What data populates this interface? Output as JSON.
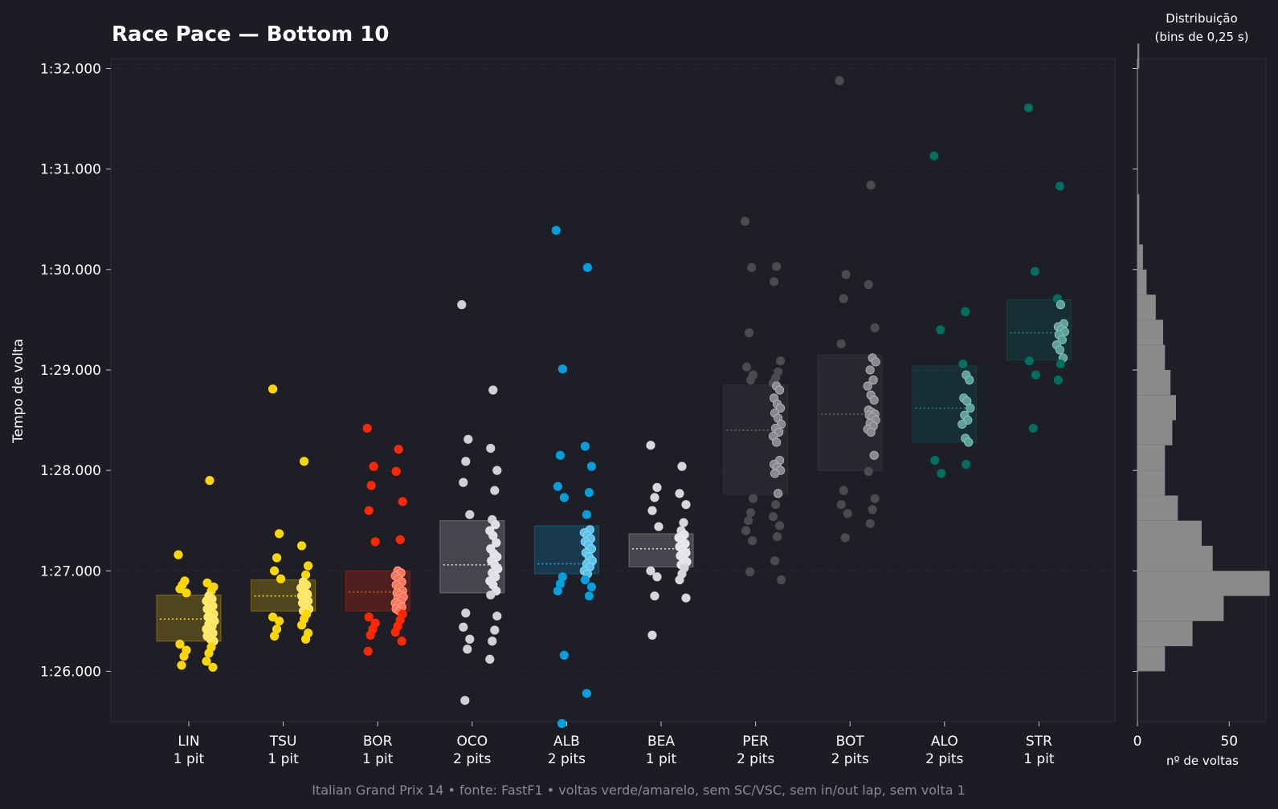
{
  "chart_data": [
    {
      "type": "scatter",
      "title": "Race Pace — Bottom 10",
      "xlabel": "",
      "ylabel": "Tempo de volta",
      "ylim": [
        85.5,
        92.1
      ],
      "y_ticks": [
        "1:26.000",
        "1:27.000",
        "1:28.000",
        "1:29.000",
        "1:30.000",
        "1:31.000",
        "1:32.000"
      ],
      "y_tick_values": [
        86,
        87,
        88,
        89,
        90,
        91,
        92
      ],
      "grid": "horizontal",
      "series": [
        {
          "code": "LIN",
          "strategy": "1 pit",
          "color": "#ffd700",
          "box": [
            86.3,
            86.52,
            86.76
          ],
          "laps": [
            87.16,
            87.9,
            86.9,
            86.88,
            86.86,
            86.84,
            86.82,
            86.8,
            86.78,
            86.75,
            86.72,
            86.7,
            86.68,
            86.65,
            86.62,
            86.6,
            86.57,
            86.54,
            86.52,
            86.5,
            86.47,
            86.45,
            86.42,
            86.4,
            86.38,
            86.35,
            86.32,
            86.3,
            86.27,
            86.24,
            86.21,
            86.18,
            86.15,
            86.1,
            86.06,
            86.04
          ]
        },
        {
          "code": "TSU",
          "strategy": "1 pit",
          "color": "#ffd700",
          "box": [
            86.6,
            86.75,
            86.91
          ],
          "laps": [
            88.81,
            88.09,
            87.37,
            87.25,
            87.13,
            87.05,
            87.0,
            86.96,
            86.92,
            86.89,
            86.86,
            86.83,
            86.8,
            86.77,
            86.75,
            86.72,
            86.7,
            86.68,
            86.65,
            86.62,
            86.6,
            86.57,
            86.54,
            86.52,
            86.5,
            86.46,
            86.42,
            86.38,
            86.35,
            86.32
          ]
        },
        {
          "code": "BOR",
          "strategy": "1 pit",
          "color": "#ff2800",
          "box": [
            86.6,
            86.79,
            87.0
          ],
          "laps": [
            88.42,
            88.21,
            88.04,
            87.99,
            87.85,
            87.69,
            87.6,
            87.31,
            87.29,
            87.0,
            86.98,
            86.95,
            86.92,
            86.89,
            86.86,
            86.83,
            86.8,
            86.78,
            86.76,
            86.74,
            86.72,
            86.7,
            86.68,
            86.66,
            86.64,
            86.62,
            86.6,
            86.57,
            86.54,
            86.51,
            86.48,
            86.45,
            86.42,
            86.39,
            86.36,
            86.3,
            86.2
          ]
        },
        {
          "code": "OCO",
          "strategy": "2 pits",
          "color": "#d0d0d6",
          "box": [
            86.78,
            87.06,
            87.5
          ],
          "laps": [
            89.65,
            88.8,
            88.31,
            88.22,
            88.09,
            88.0,
            87.88,
            87.8,
            87.56,
            87.51,
            87.46,
            87.4,
            87.35,
            87.28,
            87.22,
            87.17,
            87.14,
            87.1,
            87.06,
            87.02,
            86.98,
            86.94,
            86.9,
            86.86,
            86.8,
            86.76,
            86.58,
            86.55,
            86.44,
            86.41,
            86.32,
            86.3,
            86.22,
            86.12,
            85.71
          ]
        },
        {
          "code": "ALB",
          "strategy": "2 pits",
          "color": "#00a0de",
          "box": [
            86.97,
            87.07,
            87.45
          ],
          "laps": [
            90.39,
            90.02,
            89.01,
            88.24,
            88.15,
            88.04,
            87.84,
            87.78,
            87.73,
            87.56,
            87.41,
            87.38,
            87.35,
            87.32,
            87.29,
            87.26,
            87.22,
            87.18,
            87.14,
            87.1,
            87.07,
            87.04,
            87.0,
            86.97,
            86.94,
            86.91,
            86.87,
            86.84,
            86.8,
            86.75,
            86.16,
            85.78,
            85.48
          ]
        },
        {
          "code": "BEA",
          "strategy": "1 pit",
          "color": "#d6d6dc",
          "box": [
            87.04,
            87.22,
            87.37
          ],
          "laps": [
            88.25,
            88.04,
            87.83,
            87.77,
            87.73,
            87.66,
            87.6,
            87.48,
            87.44,
            87.4,
            87.36,
            87.33,
            87.3,
            87.27,
            87.24,
            87.21,
            87.18,
            87.15,
            87.12,
            87.09,
            87.06,
            87.03,
            87.0,
            86.97,
            86.94,
            86.91,
            86.75,
            86.73,
            86.36
          ]
        },
        {
          "code": "PER",
          "strategy": "2 pits",
          "color": "#4a4a4f",
          "box": [
            87.76,
            88.4,
            88.85
          ],
          "laps": [
            90.48,
            90.03,
            90.02,
            89.88,
            89.37,
            89.09,
            89.03,
            88.98,
            88.95,
            88.92,
            88.9,
            88.87,
            88.84,
            88.8,
            88.72,
            88.66,
            88.62,
            88.57,
            88.52,
            88.46,
            88.42,
            88.38,
            88.34,
            88.28,
            88.1,
            88.06,
            88.03,
            88.0,
            87.97,
            87.77,
            87.72,
            87.66,
            87.58,
            87.54,
            87.5,
            87.45,
            87.4,
            87.34,
            87.3,
            87.1,
            86.99,
            86.91
          ]
        },
        {
          "code": "BOT",
          "strategy": "2 pits",
          "color": "#4a4a4f",
          "box": [
            88.0,
            88.56,
            89.15
          ],
          "laps": [
            91.88,
            90.84,
            89.95,
            89.85,
            89.71,
            89.42,
            89.26,
            89.12,
            89.08,
            89.0,
            88.9,
            88.84,
            88.75,
            88.7,
            88.6,
            88.58,
            88.56,
            88.55,
            88.53,
            88.5,
            88.47,
            88.44,
            88.41,
            88.38,
            88.15,
            87.99,
            87.8,
            87.72,
            87.66,
            87.61,
            87.57,
            87.47,
            87.33
          ]
        },
        {
          "code": "ALO",
          "strategy": "2 pits",
          "color": "#006f62",
          "box": [
            88.28,
            88.62,
            89.04
          ],
          "laps": [
            91.13,
            89.58,
            89.4,
            89.06,
            88.95,
            88.9,
            88.72,
            88.69,
            88.62,
            88.55,
            88.5,
            88.46,
            88.32,
            88.28,
            88.1,
            88.06,
            87.97
          ]
        },
        {
          "code": "STR",
          "strategy": "1 pit",
          "color": "#006f62",
          "box": [
            89.1,
            89.37,
            89.7
          ],
          "laps": [
            91.61,
            90.83,
            89.98,
            89.71,
            89.65,
            89.46,
            89.43,
            89.4,
            89.38,
            89.35,
            89.3,
            89.25,
            89.2,
            89.12,
            89.09,
            89.06,
            88.95,
            88.9,
            88.42
          ]
        }
      ]
    },
    {
      "type": "bar",
      "orientation": "horizontal",
      "title": "Distribuição\n(bins de 0,25 s)",
      "title_lines": [
        "Distribuição",
        "(bins de 0,25 s)"
      ],
      "xlabel": "nº de voltas",
      "xlim": [
        0,
        70
      ],
      "x_ticks": [
        "0",
        "50"
      ],
      "x_tick_values": [
        0,
        50
      ],
      "bins_start": 86.0,
      "bin_width": 0.25,
      "counts": [
        15,
        30,
        47,
        72,
        41,
        35,
        22,
        15,
        15,
        19,
        21,
        18,
        15,
        14,
        10,
        5,
        3,
        1,
        1,
        0,
        0,
        0,
        0,
        0,
        1,
        0,
        0,
        0,
        0,
        0,
        0,
        0,
        0,
        0,
        0,
        0,
        0,
        0,
        0,
        0
      ],
      "color": "#8a8a8a"
    }
  ],
  "footer": {
    "text": "Italian Grand Prix 14  •  fonte: FastF1  •  voltas verde/amarelo, sem SC/VSC, sem in/out lap, sem volta 1"
  }
}
